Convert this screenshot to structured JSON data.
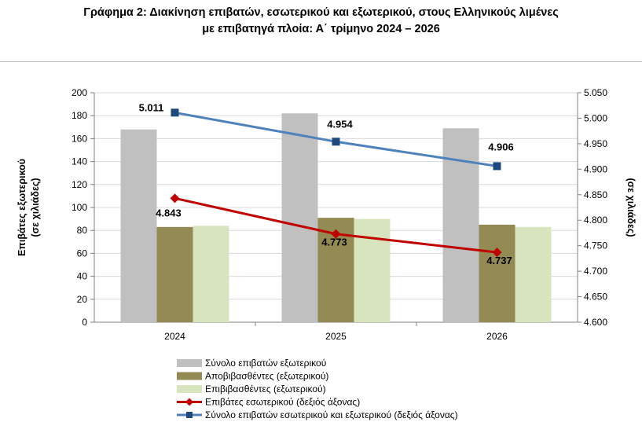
{
  "title": {
    "line1": "Γράφημα 2: Διακίνηση επιβατών, εσωτερικού και εξωτερικού, στους Ελληνικούς λιμένες",
    "line2": "με επιβατηγά πλοία: Α΄ τρίμηνο 2024 – 2026"
  },
  "colors": {
    "total_foreign": "#c0c0c0",
    "disembarked": "#948a54",
    "embarked": "#d7e4bd",
    "domestic_line": "#c00000",
    "total_line": "#4f81bd",
    "total_marker": "#1f497d",
    "axis": "#808080"
  },
  "chart_data": {
    "type": "bar",
    "categories": [
      "2024",
      "2025",
      "2026"
    ],
    "series": [
      {
        "name": "Σύνολο επιβατών εξωτερικού",
        "type": "bar",
        "axis": "left",
        "values": [
          168,
          182,
          169
        ]
      },
      {
        "name": "Αποβιβασθέντες (εξωτερικού)",
        "type": "bar",
        "axis": "left",
        "values": [
          83,
          91,
          85
        ]
      },
      {
        "name": "Επιβιβασθέντες (εξωτερικού)",
        "type": "bar",
        "axis": "left",
        "values": [
          84,
          90,
          83
        ]
      },
      {
        "name": "Επιβάτες εσωτερικού (δεξιός άξονας)",
        "type": "line",
        "axis": "right",
        "values": [
          4843,
          4773,
          4737
        ],
        "labels": [
          "4.843",
          "4.773",
          "4.737"
        ]
      },
      {
        "name": "Σύνολο επιβατών εσωτερικού και εξωτερικού (δεξιός άξονας)",
        "type": "line",
        "axis": "right",
        "values": [
          5011,
          4954,
          4906
        ],
        "labels": [
          "5.011",
          "4.954",
          "4.906"
        ]
      }
    ],
    "ylim_left": [
      0,
      200
    ],
    "ylim_right": [
      4600,
      5050
    ],
    "yticks_left": [
      "0",
      "20",
      "40",
      "60",
      "80",
      "100",
      "120",
      "140",
      "160",
      "180",
      "200"
    ],
    "yticks_right": [
      "4.600",
      "4.650",
      "4.700",
      "4.750",
      "4.800",
      "4.850",
      "4.900",
      "4.950",
      "5.000",
      "5.050"
    ],
    "ylabel_left": [
      "Επιβάτες εξωτερικού",
      "(σε χιλιάδες)"
    ],
    "ylabel_right": "(σε χιλιάδες)",
    "grid": true,
    "legend_position": "bottom"
  }
}
